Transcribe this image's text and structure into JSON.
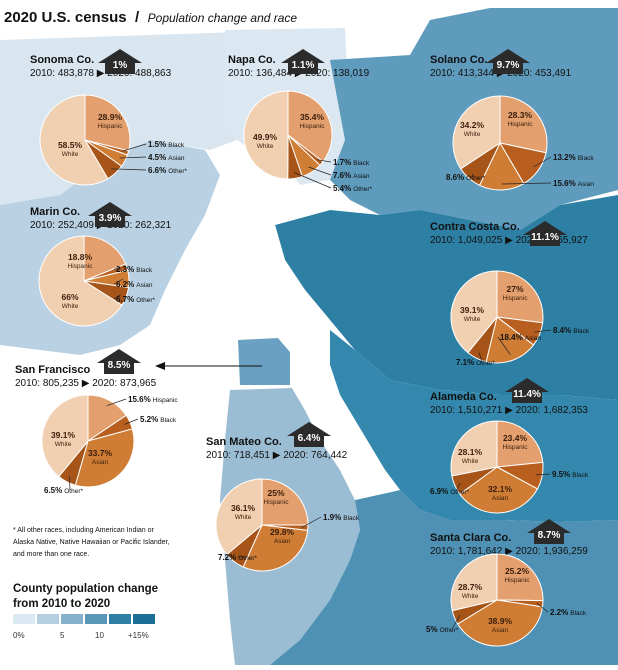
{
  "header": {
    "title": "2020 U.S. census",
    "separator": "/",
    "subtitle": "Population change and race"
  },
  "footnote": [
    "* All other races, including American Indian or",
    "Alaska Native, Native Hawaiian or Pacific Islander,",
    "and more than one race."
  ],
  "legend": {
    "title_lines": [
      "County population change",
      "from 2010 to 2020"
    ],
    "ticks": [
      "0%",
      "5",
      "10",
      "+15%"
    ],
    "colors": [
      "#dbe9f2",
      "#b4cfe0",
      "#86b1cb",
      "#5a96b8",
      "#2f7fa5",
      "#1b6f95"
    ]
  },
  "category_names": {
    "hispanic": "Hispanic",
    "white": "White",
    "black": "Black",
    "asian": "Asian",
    "other": "Other*"
  },
  "slice_colors": {
    "hispanic": "#e3a06e",
    "white": "#f1cfb1",
    "black": "#b85e1e",
    "asian": "#cf7c34",
    "other": "#a65418"
  },
  "map_colors": {
    "land_light": "#cfdde8",
    "water": "#ffffff"
  },
  "chart_data": [
    {
      "type": "pie",
      "county": "Sonoma Co.",
      "change": "1%",
      "pop2010": "483,878",
      "pop2020": "488,863",
      "change_value": 1.0,
      "slices": {
        "hispanic": 28.9,
        "black": 1.5,
        "asian": 4.5,
        "other": 6.6,
        "white": 58.5
      }
    },
    {
      "type": "pie",
      "county": "Napa Co.",
      "change": "1.1%",
      "pop2010": "136,484",
      "pop2020": "138,019",
      "change_value": 1.1,
      "slices": {
        "hispanic": 35.4,
        "black": 1.7,
        "asian": 7.6,
        "other": 5.4,
        "white": 49.9
      }
    },
    {
      "type": "pie",
      "county": "Solano Co.",
      "change": "9.7%",
      "pop2010": "413,344",
      "pop2020": "453,491",
      "change_value": 9.7,
      "slices": {
        "hispanic": 28.3,
        "black": 13.2,
        "asian": 15.6,
        "other": 8.6,
        "white": 34.2
      }
    },
    {
      "type": "pie",
      "county": "Marin Co.",
      "change": "3.9%",
      "pop2010": "252,409",
      "pop2020": "262,321",
      "change_value": 3.9,
      "slices": {
        "hispanic": 18.8,
        "black": 2.3,
        "asian": 6.2,
        "other": 6.7,
        "white": 66
      }
    },
    {
      "type": "pie",
      "county": "Contra Costa Co.",
      "change": "11.1%",
      "pop2010": "1,049,025",
      "pop2020": "1,165,927",
      "change_value": 11.1,
      "slices": {
        "hispanic": 27,
        "black": 8.4,
        "asian": 18.4,
        "other": 7.1,
        "white": 39.1
      }
    },
    {
      "type": "pie",
      "county": "San Francisco",
      "change": "8.5%",
      "pop2010": "805,235",
      "pop2020": "873,965",
      "change_value": 8.5,
      "slices": {
        "hispanic": 15.6,
        "black": 5.2,
        "asian": 33.7,
        "other": 6.5,
        "white": 39.1
      }
    },
    {
      "type": "pie",
      "county": "Alameda Co.",
      "change": "11.4%",
      "pop2010": "1,510,271",
      "pop2020": "1,682,353",
      "change_value": 11.4,
      "slices": {
        "hispanic": 23.4,
        "black": 9.5,
        "asian": 32.1,
        "other": 6.9,
        "white": 28.1
      }
    },
    {
      "type": "pie",
      "county": "San Mateo Co.",
      "change": "6.4%",
      "pop2010": "718,451",
      "pop2020": "764,442",
      "change_value": 6.4,
      "slices": {
        "hispanic": 25,
        "black": 1.9,
        "asian": 29.8,
        "other": 7.2,
        "white": 36.1
      }
    },
    {
      "type": "pie",
      "county": "Santa Clara Co.",
      "change": "8.7%",
      "pop2010": "1,781,642",
      "pop2020": "1,936,259",
      "change_value": 8.7,
      "slices": {
        "hispanic": 25.2,
        "black": 2.2,
        "asian": 38.9,
        "other": 5,
        "white": 28.7
      }
    }
  ]
}
